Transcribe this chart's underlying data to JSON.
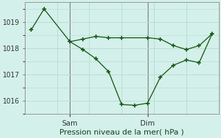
{
  "title": "Pression niveau de la mer( hPa )",
  "background_color": "#d4f0ea",
  "grid_color": "#b8ddd6",
  "line_color": "#1a5c1a",
  "marker_color": "#1a5c1a",
  "ylim": [
    1015.5,
    1019.75
  ],
  "yticks": [
    1016,
    1017,
    1018,
    1019
  ],
  "sam_x": 3,
  "dim_x": 9,
  "total_points": 13,
  "series1_x": [
    0,
    1,
    3,
    4,
    5,
    6,
    7,
    9,
    10,
    11,
    12,
    13,
    14
  ],
  "series1_y": [
    1018.7,
    1019.5,
    1018.25,
    1018.35,
    1018.45,
    1018.4,
    1018.4,
    1018.4,
    1018.35,
    1018.1,
    1017.95,
    1018.1,
    1018.55
  ],
  "series2_x": [
    3,
    4,
    5,
    6,
    7,
    8,
    9,
    10,
    11,
    12,
    13,
    14
  ],
  "series2_y": [
    1018.25,
    1017.95,
    1017.6,
    1017.1,
    1015.85,
    1015.82,
    1015.9,
    1016.9,
    1017.35,
    1017.55,
    1017.45,
    1018.55
  ],
  "sam_tick": 3,
  "dim_tick": 9,
  "xlim": [
    -0.5,
    14.5
  ]
}
